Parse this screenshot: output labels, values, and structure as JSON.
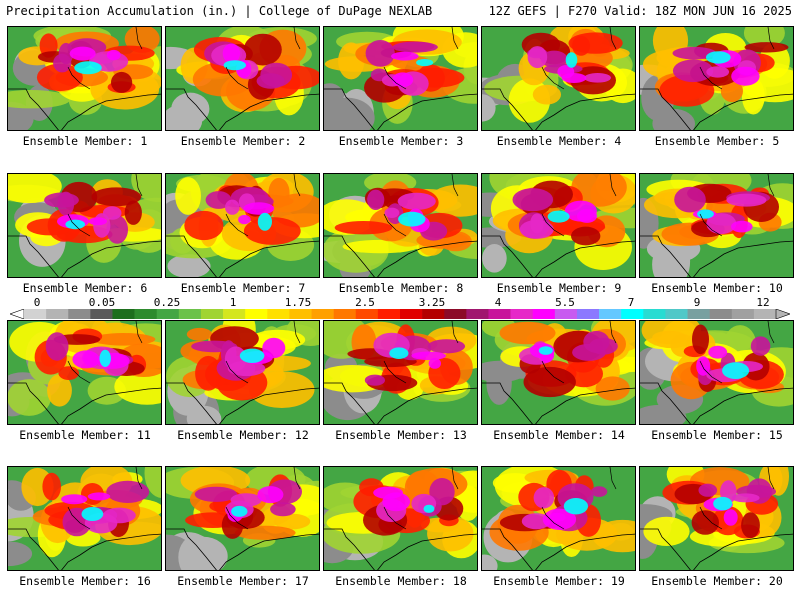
{
  "header": {
    "left": "Precipitation Accumulation (in.) | College of DuPage NEXLAB",
    "right": "12Z GEFS | F270 Valid: 18Z MON JUN 16 2025"
  },
  "colorbar": {
    "labels": [
      "0",
      "0.05",
      "0.25",
      "1",
      "1.75",
      "2.5",
      "3.25",
      "4",
      "5.5",
      "7",
      "9",
      "12"
    ],
    "colors": [
      "#d2d2d2",
      "#b4b4b4",
      "#8c8c8c",
      "#5a5a5a",
      "#1e6e1e",
      "#2e8b2e",
      "#44a644",
      "#6cc24a",
      "#a0d432",
      "#d4e61e",
      "#ffff00",
      "#ffe000",
      "#ffbf00",
      "#ffa000",
      "#ff7800",
      "#ff4a00",
      "#ff1e00",
      "#e00000",
      "#b40000",
      "#8c0a28",
      "#a0166e",
      "#c8149b",
      "#e628c8",
      "#ff00ff",
      "#c85af0",
      "#8c78ff",
      "#64c8ff",
      "#00ffff",
      "#28dcd2",
      "#50c8c8",
      "#78a0a0",
      "#8c8c8c",
      "#a0a0a0",
      "#b4b4b4"
    ]
  },
  "members": [
    {
      "label": "Ensemble Member: 1"
    },
    {
      "label": "Ensemble Member: 2"
    },
    {
      "label": "Ensemble Member: 3"
    },
    {
      "label": "Ensemble Member: 4"
    },
    {
      "label": "Ensemble Member: 5"
    },
    {
      "label": "Ensemble Member: 6"
    },
    {
      "label": "Ensemble Member: 7"
    },
    {
      "label": "Ensemble Member: 8"
    },
    {
      "label": "Ensemble Member: 9"
    },
    {
      "label": "Ensemble Member: 10"
    },
    {
      "label": "Ensemble Member: 11"
    },
    {
      "label": "Ensemble Member: 12"
    },
    {
      "label": "Ensemble Member: 13"
    },
    {
      "label": "Ensemble Member: 14"
    },
    {
      "label": "Ensemble Member: 15"
    },
    {
      "label": "Ensemble Member: 16"
    },
    {
      "label": "Ensemble Member: 17"
    },
    {
      "label": "Ensemble Member: 18"
    },
    {
      "label": "Ensemble Member: 19"
    },
    {
      "label": "Ensemble Member: 20"
    }
  ]
}
